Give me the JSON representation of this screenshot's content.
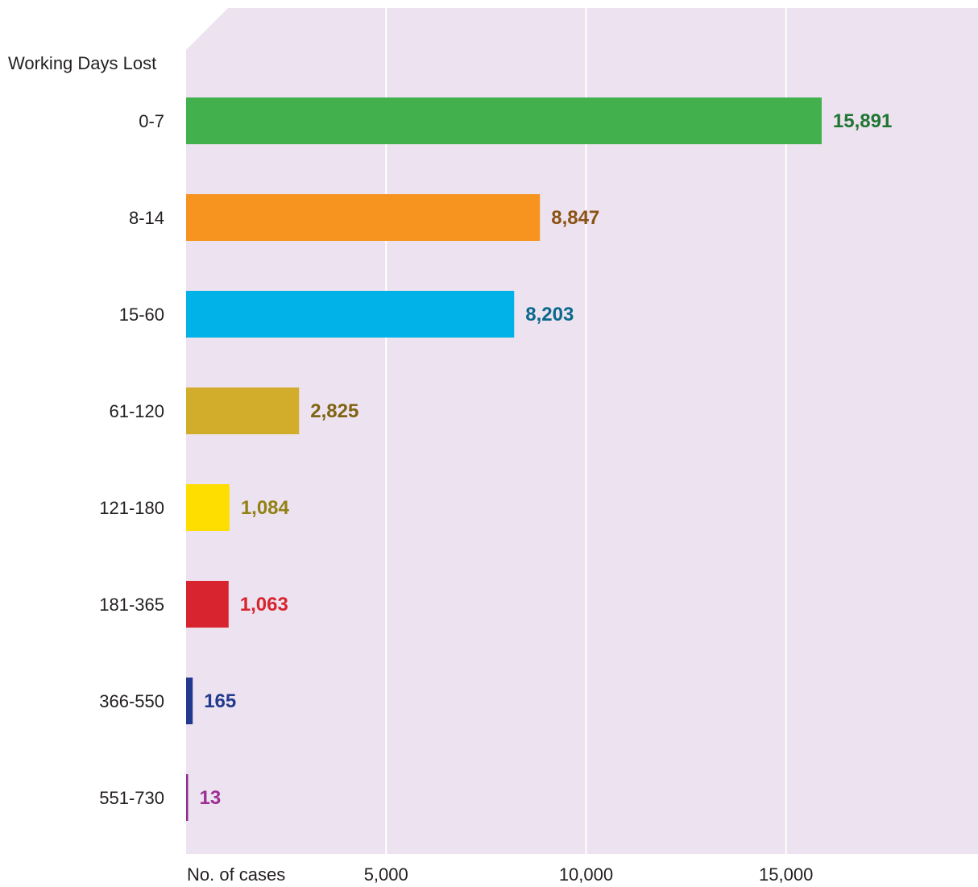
{
  "chart_data": {
    "type": "bar",
    "orientation": "horizontal",
    "title": "",
    "ylabel": "Working Days Lost",
    "xlabel": "No. of cases",
    "categories": [
      "0-7",
      "8-14",
      "15-60",
      "61-120",
      "121-180",
      "181-365",
      "366-550",
      "551-730"
    ],
    "values": [
      15891,
      8847,
      8203,
      2825,
      1084,
      1063,
      165,
      13
    ],
    "value_labels": [
      "15,891",
      "8,847",
      "8,203",
      "2,825",
      "1,084",
      "1,063",
      "165",
      "13"
    ],
    "bar_colors": [
      "#41b04d",
      "#f6941f",
      "#00b2e8",
      "#d2ac2b",
      "#fedd00",
      "#d7242e",
      "#22398f",
      "#8f2d8c"
    ],
    "label_colors": [
      "#207533",
      "#8b5314",
      "#09698c",
      "#7e6412",
      "#928114",
      "#d7242e",
      "#22398f",
      "#9b2f93"
    ],
    "xlim": [
      0,
      19800
    ],
    "x_ticks": [
      5000,
      10000,
      15000
    ],
    "x_tick_labels": [
      "5,000",
      "10,000",
      "15,000"
    ],
    "grid": true,
    "plot_background": "#ede2ef",
    "gridline_color": "#ffffff"
  }
}
